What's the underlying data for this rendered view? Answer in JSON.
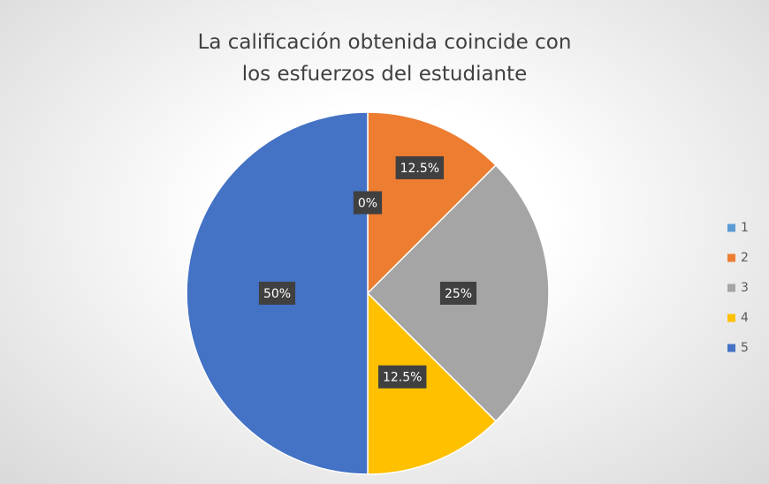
{
  "chart_data": {
    "type": "pie",
    "title": "La calificación obtenida coincide con los esfuerzos del estudiante",
    "categories": [
      "1",
      "2",
      "3",
      "4",
      "5"
    ],
    "values": [
      0,
      12.5,
      25,
      12.5,
      50
    ],
    "value_labels": [
      "0%",
      "12.5%",
      "25%",
      "12.5%",
      "50%"
    ],
    "colors": [
      "#5b9bd5",
      "#ed7d31",
      "#a5a5a5",
      "#ffc000",
      "#4472c4"
    ],
    "legend": "right"
  }
}
